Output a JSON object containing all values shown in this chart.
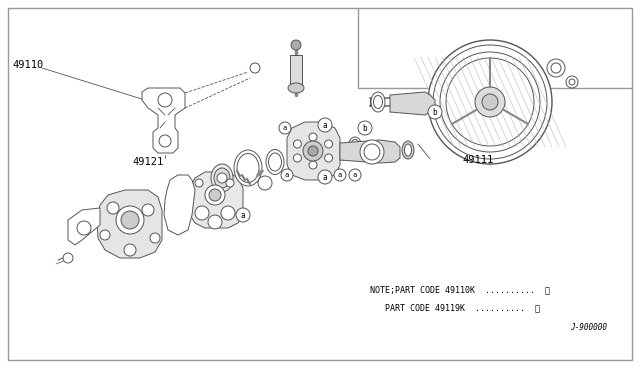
{
  "bg_color": "#ffffff",
  "border_color": "#999999",
  "line_color": "#555555",
  "figsize": [
    6.4,
    3.72
  ],
  "dpi": 100,
  "font_size_label": 7.5,
  "font_size_note": 6.0,
  "font_size_stamp": 5.5,
  "label_49110": "49110",
  "label_49121": "49121",
  "label_49111": "49111",
  "note_line1": "NOTE;PART CODE 49110K  ..........",
  "note_line2": "PART CODE 49119K  ..........",
  "stamp": "J-900000"
}
